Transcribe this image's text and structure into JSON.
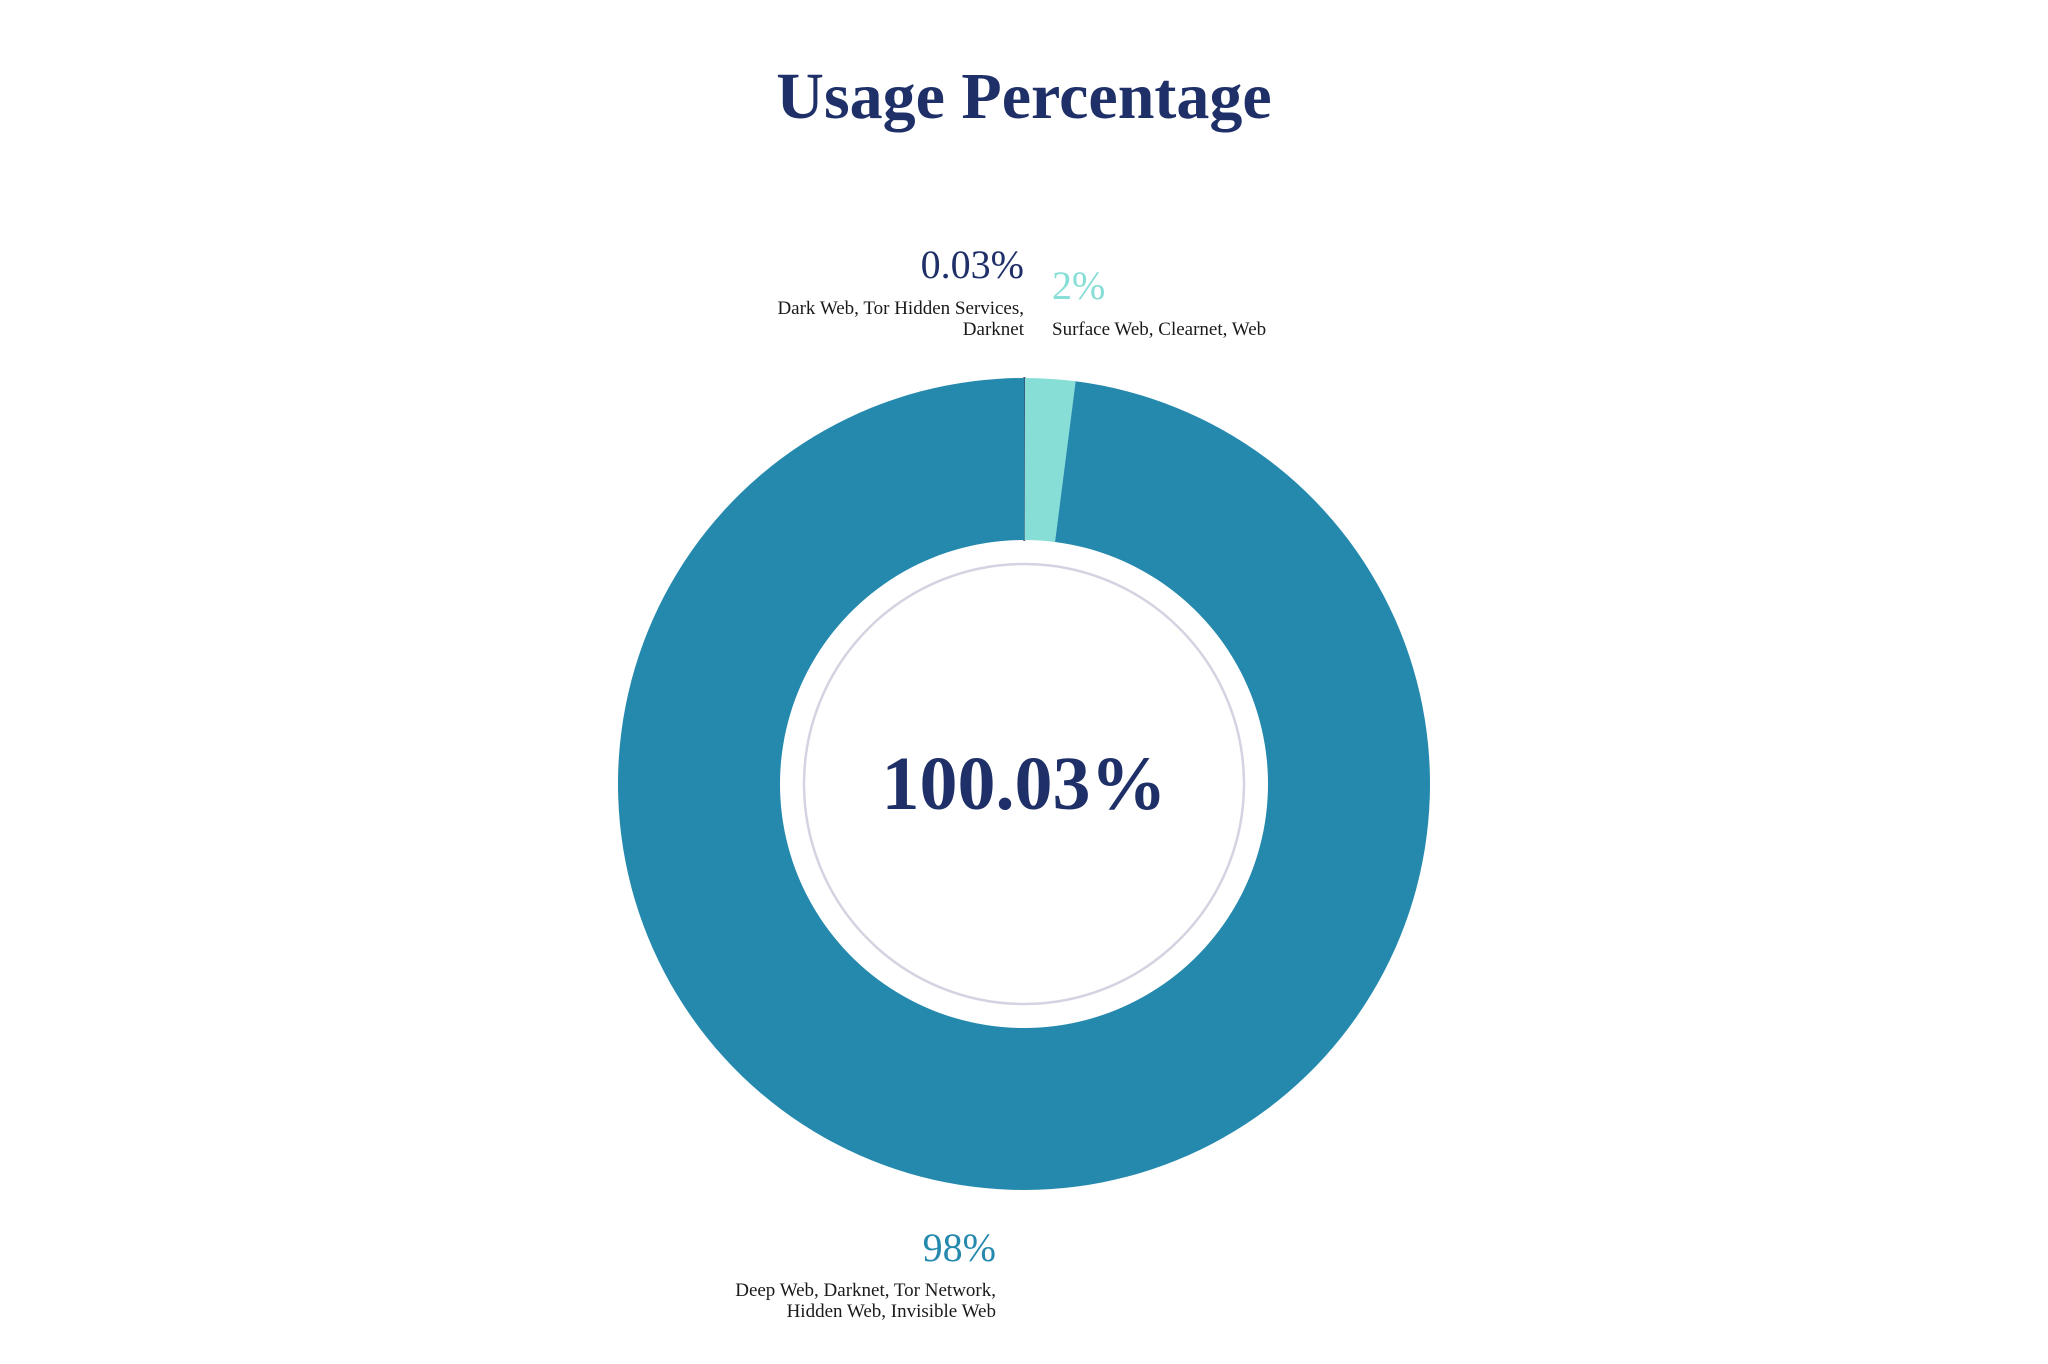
{
  "chart_data": {
    "type": "pie",
    "title": "Usage Percentage",
    "center_label": "100.03%",
    "slices": [
      {
        "value": 0.03,
        "value_label": "0.03%",
        "label_lines": [
          "Dark Web, Tor Hidden Services,",
          "Darknet"
        ],
        "color": "#1f3069",
        "label_color": "#1f3069"
      },
      {
        "value": 2,
        "value_label": "2%",
        "label_lines": [
          "Surface Web, Clearnet, Web"
        ],
        "color": "#86ded6",
        "label_color": "#86ded6"
      },
      {
        "value": 98,
        "value_label": "98%",
        "label_lines": [
          "Deep Web, Darknet, Tor Network,",
          "Hidden Web, Invisible Web"
        ],
        "color": "#2589ae",
        "label_color": "#2589ae"
      }
    ],
    "inner_ring_color": "#d3d3e2",
    "legend": "none"
  }
}
